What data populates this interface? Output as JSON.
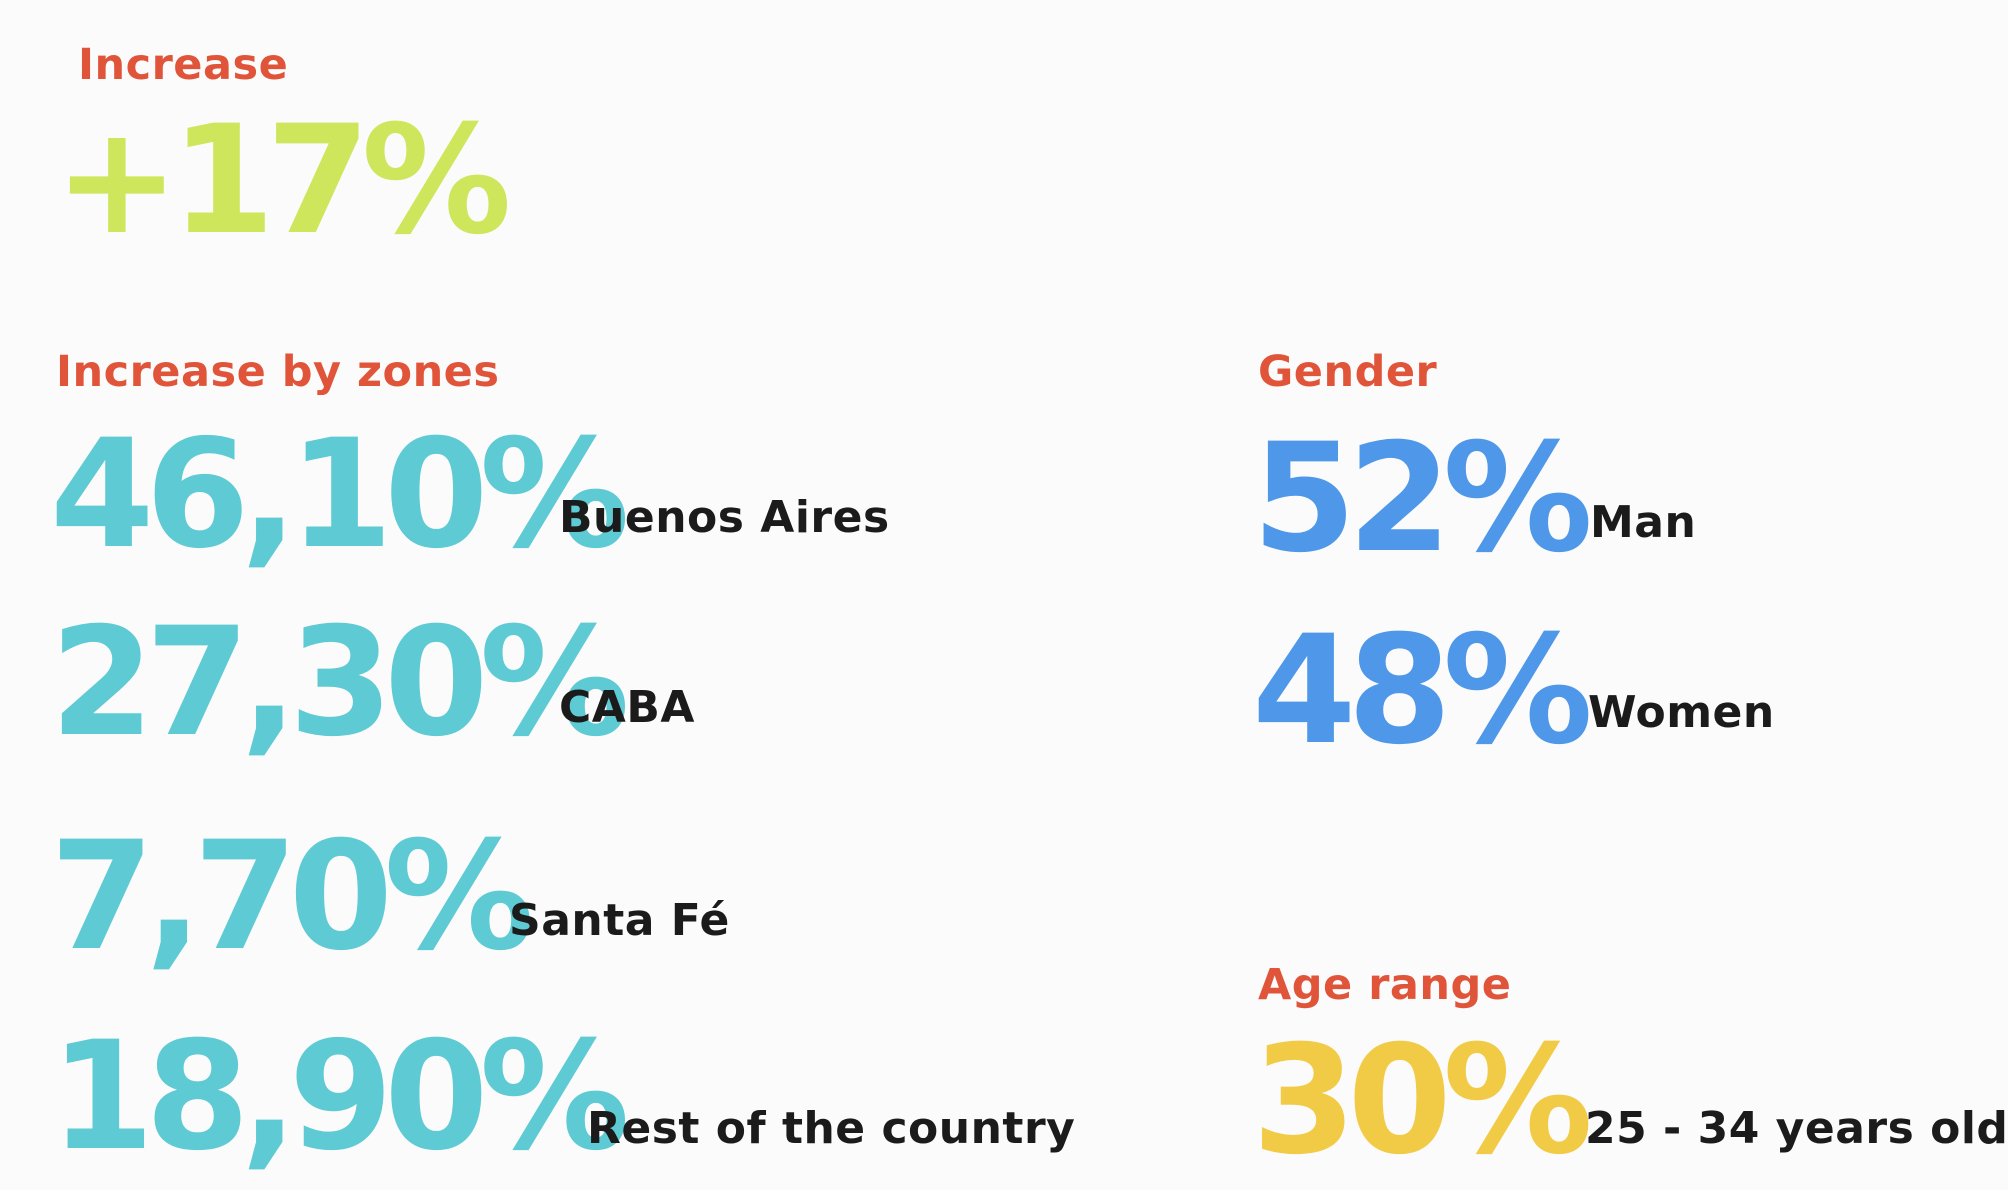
{
  "colors": {
    "heading": "#e0553a",
    "increase": "#cde65c",
    "zones": "#5ecad3",
    "gender": "#4f97e8",
    "age": "#f2cb46",
    "label": "#1b1b1b"
  },
  "increase": {
    "heading": "Increase",
    "value": "+17%"
  },
  "zones": {
    "heading": "Increase by zones",
    "items": [
      {
        "value": "46,10%",
        "label": "Buenos Aires"
      },
      {
        "value": "27,30%",
        "label": "CABA"
      },
      {
        "value": "7,70%",
        "label": "Santa Fé"
      },
      {
        "value": "18,90%",
        "label": "Rest of the country"
      }
    ]
  },
  "gender": {
    "heading": "Gender",
    "items": [
      {
        "value": "52%",
        "label": "Man"
      },
      {
        "value": "48%",
        "label": "Women"
      }
    ]
  },
  "age": {
    "heading": "Age range",
    "items": [
      {
        "value": "30%",
        "label": "25 - 34 years old"
      }
    ]
  }
}
